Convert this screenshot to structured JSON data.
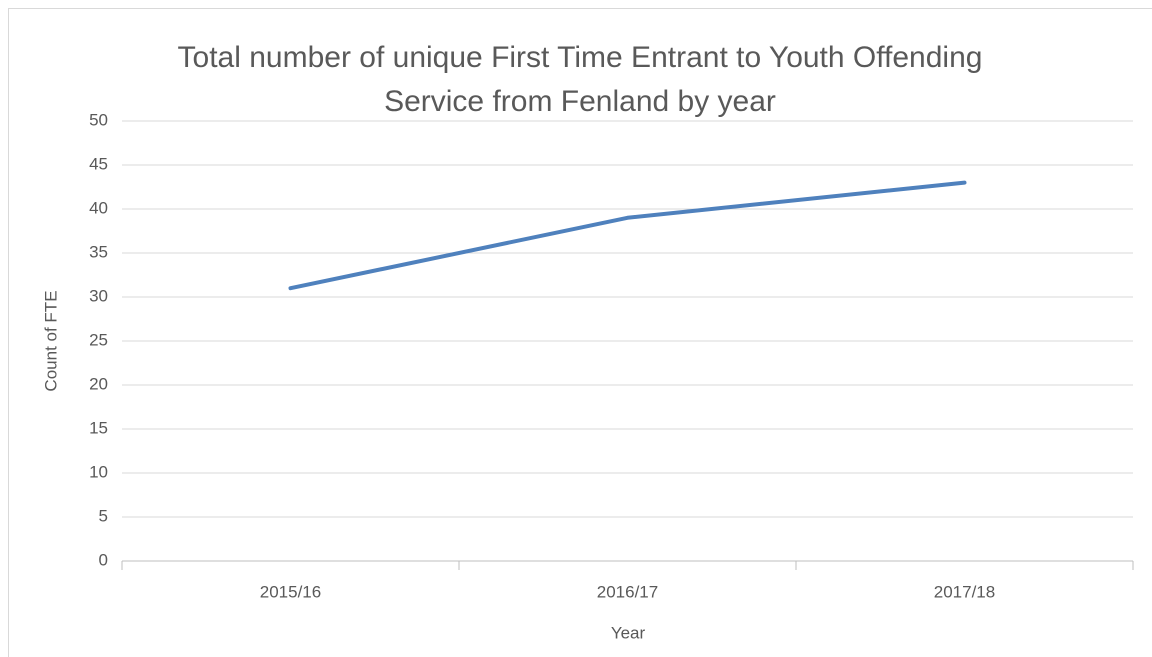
{
  "chart_data": {
    "type": "line",
    "title": "Total number of unique First Time Entrant to Youth Offending Service from Fenland by year",
    "x_label": "Year",
    "y_label": "Count of FTE",
    "categories": [
      "2015/16",
      "2016/17",
      "2017/18"
    ],
    "series": [
      {
        "name": "Count of FTE",
        "color": "#4f81bd",
        "values": [
          31,
          39,
          43
        ]
      }
    ],
    "ylim": [
      0,
      50
    ],
    "yticks": [
      0,
      5,
      10,
      15,
      20,
      25,
      30,
      35,
      40,
      45,
      50
    ],
    "grid": true,
    "legend": false
  }
}
